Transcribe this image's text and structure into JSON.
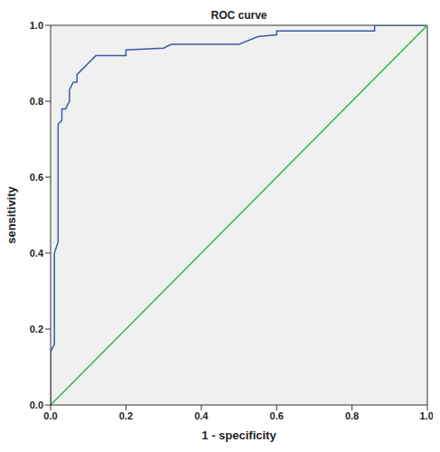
{
  "chart_data": {
    "type": "line",
    "title": "ROC curve",
    "x_label": "1 - specificity",
    "y_label": "sensitivity",
    "xlim": [
      0,
      1
    ],
    "ylim": [
      0,
      1
    ],
    "xticks": [
      {
        "value": 0,
        "label": "0.0"
      },
      {
        "value": 0.2,
        "label": "0.2"
      },
      {
        "value": 0.4,
        "label": "0.4"
      },
      {
        "value": 0.6,
        "label": "0.6"
      },
      {
        "value": 0.8,
        "label": "0.8"
      },
      {
        "value": 1,
        "label": "1.0"
      }
    ],
    "yticks": [
      {
        "value": 0,
        "label": "0.0"
      },
      {
        "value": 0.2,
        "label": "0.2"
      },
      {
        "value": 0.4,
        "label": "0.4"
      },
      {
        "value": 0.6,
        "label": "0.6"
      },
      {
        "value": 0.8,
        "label": "0.8"
      },
      {
        "value": 1,
        "label": "1.0"
      }
    ],
    "grid": false,
    "series": [
      {
        "color": "#3b5ba5",
        "marker": "none",
        "line_style": "solid",
        "x": [
          0,
          0,
          0.01,
          0.01,
          0.02,
          0.02,
          0.03,
          0.03,
          0.04,
          0.05,
          0.05,
          0.06,
          0.07,
          0.07,
          0.1,
          0.12,
          0.2,
          0.2,
          0.3,
          0.32,
          0.5,
          0.55,
          0.6,
          0.6,
          0.86,
          0.86,
          1
        ],
        "values": [
          0,
          0.14,
          0.16,
          0.4,
          0.43,
          0.74,
          0.75,
          0.78,
          0.78,
          0.8,
          0.83,
          0.85,
          0.85,
          0.87,
          0.9,
          0.92,
          0.92,
          0.935,
          0.94,
          0.95,
          0.95,
          0.97,
          0.975,
          0.985,
          0.985,
          1,
          1
        ]
      },
      {
        "color": "#2fb54a",
        "marker": "none",
        "line_style": "solid",
        "x": [
          0,
          1
        ],
        "values": [
          0,
          1
        ]
      }
    ]
  }
}
